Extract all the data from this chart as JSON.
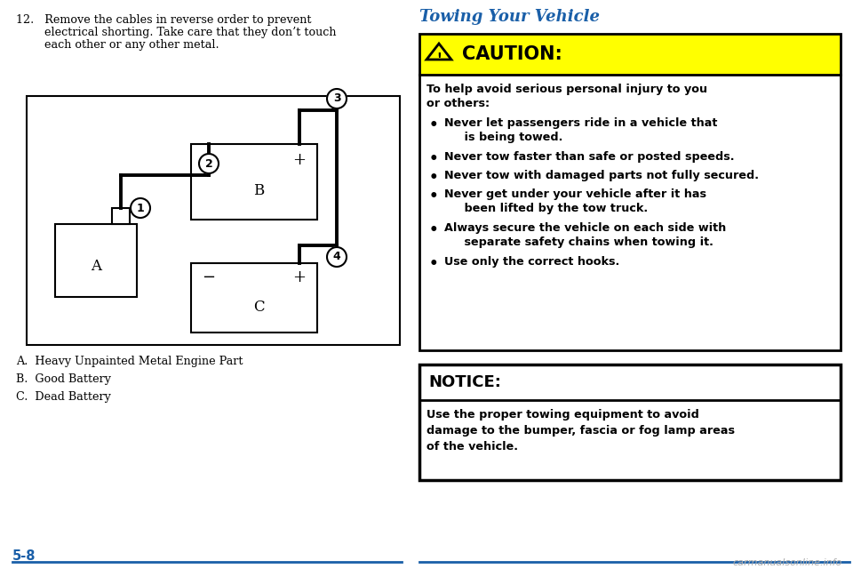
{
  "bg_color": "#ffffff",
  "text_color": "#000000",
  "title_color": "#1a5fa8",
  "page_color": "#1a5fa8",
  "caution_bg": "#ffff00",
  "border_color": "#000000",
  "watermark": "carmanualsonline.info",
  "page_number": "5-8",
  "step12_line1": "12.   Remove the cables in reverse order to prevent",
  "step12_line2": "        electrical shorting. Take care that they don’t touch",
  "step12_line3": "        each other or any other metal.",
  "legend_A": "A.  Heavy Unpainted Metal Engine Part",
  "legend_B": "B.  Good Battery",
  "legend_C": "C.  Dead Battery",
  "towing_title": "Towing Your Vehicle",
  "caution_header": "CAUTION:",
  "caution_body1": "To help avoid serious personal injury to you",
  "caution_body2": "or others:",
  "caution_bullets": [
    "Never let passengers ride in a vehicle that\n     is being towed.",
    "Never tow faster than safe or posted speeds.",
    "Never tow with damaged parts not fully secured.",
    "Never get under your vehicle after it has\n     been lifted by the tow truck.",
    "Always secure the vehicle on each side with\n     separate safety chains when towing it.",
    "Use only the correct hooks."
  ],
  "notice_header": "NOTICE:",
  "notice_body": "Use the proper towing equipment to avoid\ndamage to the bumper, fascia or fog lamp areas\nof the vehicle."
}
